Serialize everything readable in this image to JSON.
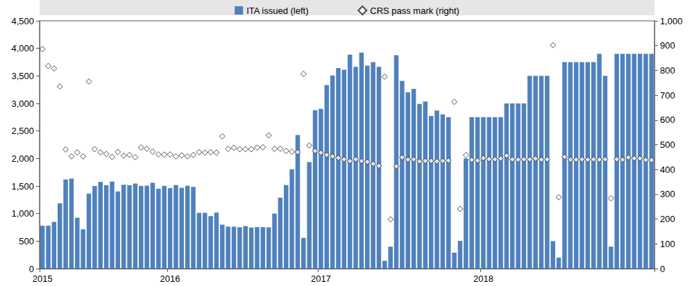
{
  "chart_data": {
    "type": "bar",
    "categories": [
      "2015",
      null,
      null,
      null,
      null,
      null,
      null,
      null,
      null,
      null,
      null,
      null,
      null,
      null,
      null,
      null,
      null,
      null,
      null,
      null,
      null,
      null,
      "2016",
      null,
      null,
      null,
      null,
      null,
      null,
      null,
      null,
      null,
      null,
      null,
      null,
      null,
      null,
      null,
      null,
      null,
      null,
      null,
      null,
      null,
      null,
      null,
      null,
      null,
      "2017",
      null,
      null,
      null,
      null,
      null,
      null,
      null,
      null,
      null,
      null,
      null,
      null,
      null,
      null,
      null,
      null,
      null,
      null,
      null,
      null,
      null,
      null,
      null,
      null,
      null,
      null,
      null,
      "2018",
      null,
      null,
      null,
      null,
      null,
      null,
      null,
      null,
      null,
      null,
      null,
      null,
      null,
      null,
      null,
      null,
      null,
      null,
      null,
      null,
      null,
      null,
      null,
      null,
      null,
      null,
      null,
      null,
      null
    ],
    "series": [
      {
        "name": "ITA issued (left)",
        "type": "bar",
        "color": "#4f81bd",
        "values": [
          779,
          779,
          849,
          1187,
          1620,
          1637,
          925,
          715,
          1361,
          1501,
          1575,
          1516,
          1581,
          1402,
          1523,
          1517,
          1545,
          1502,
          1506,
          1559,
          1451,
          1503,
          1463,
          1518,
          1468,
          1505,
          1484,
          1013,
          1014,
          954,
          1018,
          799,
          763,
          762,
          752,
          773,
          747,
          755,
          754,
          750,
          1000,
          1288,
          1518,
          1804,
          2427,
          559,
          1936,
          2878,
          2902,
          3334,
          3508,
          3644,
          3611,
          3884,
          3664,
          3923,
          3687,
          3749,
          3665,
          143,
          400,
          3877,
          3409,
          3202,
          3264,
          2991,
          3035,
          2772,
          2871,
          2801,
          2750,
          290,
          505,
          2000,
          2750,
          2750,
          2750,
          2750,
          2750,
          2750,
          3000,
          3000,
          3000,
          3000,
          3500,
          3500,
          3500,
          3500,
          500,
          200,
          3750,
          3750,
          3750,
          3750,
          3750,
          3750,
          3900,
          3500,
          400,
          3900,
          3900,
          3900,
          3900,
          3900,
          3900,
          3900
        ]
      },
      {
        "name": "CRS pass mark (right)",
        "type": "scatter",
        "axis": "y2",
        "marker": "diamond",
        "color": "#ffffff",
        "values": [
          886,
          818,
          808,
          735,
          481,
          453,
          469,
          453,
          755,
          482,
          469,
          463,
          451,
          471,
          456,
          459,
          450,
          489,
          484,
          472,
          461,
          460,
          461,
          453,
          457,
          453,
          459,
          470,
          468,
          470,
          468,
          534,
          483,
          488,
          482,
          482,
          482,
          488,
          490,
          538,
          483,
          484,
          475,
          472,
          470,
          786,
          497,
          475,
          468,
          459,
          453,
          447,
          441,
          434,
          441,
          434,
          431,
          423,
          415,
          775,
          199,
          413,
          449,
          440,
          441,
          433,
          435,
          435,
          433,
          435,
          436,
          673,
          241,
          458,
          439,
          436,
          446,
          442,
          441,
          444,
          456,
          441,
          440,
          441,
          441,
          444,
          440,
          441,
          902,
          288,
          451,
          440,
          440,
          441,
          440,
          441,
          440,
          441,
          284,
          441,
          440,
          449,
          445,
          445,
          439,
          438
        ]
      }
    ],
    "ylim": [
      0,
      4500
    ],
    "yticks": [
      0,
      500,
      1000,
      1500,
      2000,
      2500,
      3000,
      3500,
      4000,
      4500
    ],
    "y2lim": [
      0,
      1000
    ],
    "y2ticks": [
      0,
      100,
      200,
      300,
      400,
      500,
      600,
      700,
      800,
      900,
      1000
    ],
    "legend": "top",
    "grid": false
  }
}
